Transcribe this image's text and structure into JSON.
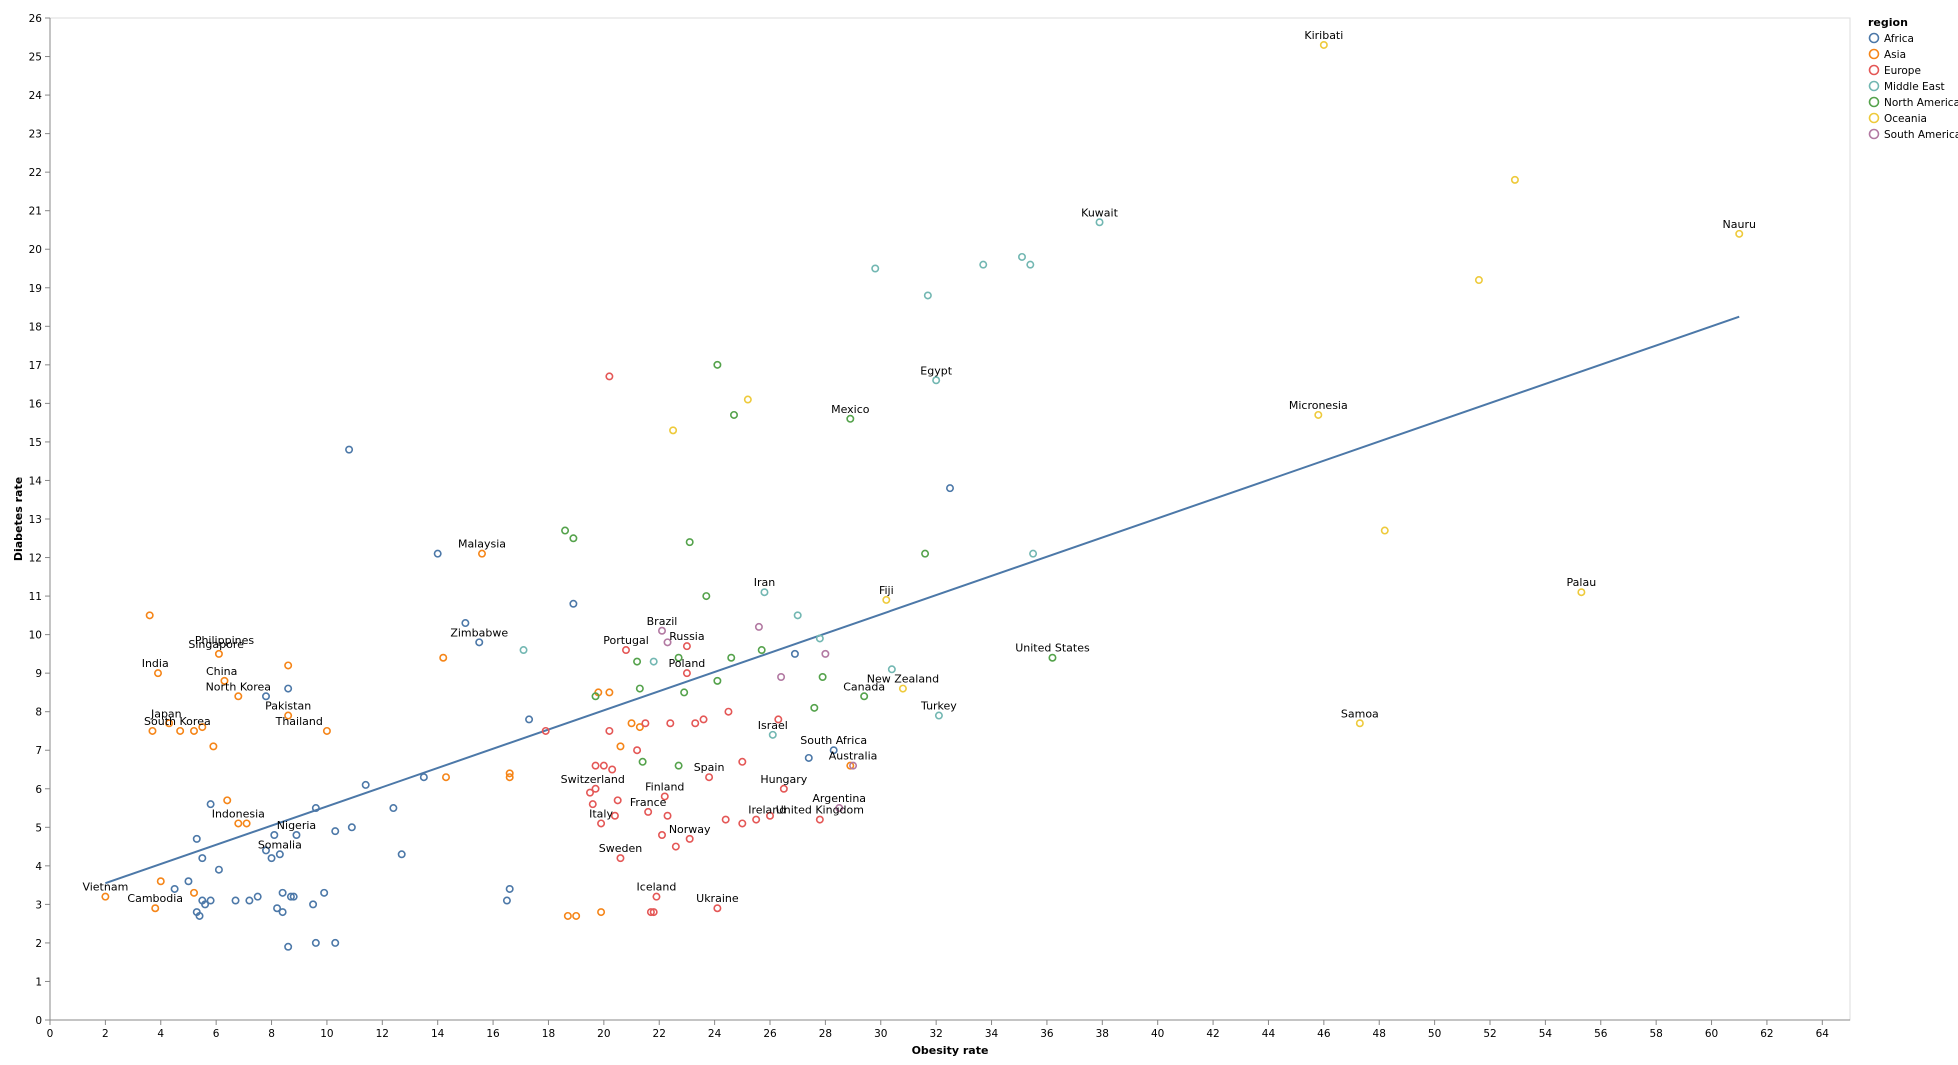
{
  "chart_data": {
    "type": "scatter",
    "xlabel": "Obesity rate",
    "ylabel": "Diabetes rate",
    "xlim": [
      0,
      65
    ],
    "ylim": [
      0,
      26
    ],
    "x_ticks": [
      0,
      2,
      4,
      6,
      8,
      10,
      12,
      14,
      16,
      18,
      20,
      22,
      24,
      26,
      28,
      30,
      32,
      34,
      36,
      38,
      40,
      42,
      44,
      46,
      48,
      50,
      52,
      54,
      56,
      58,
      60,
      62,
      64
    ],
    "y_ticks": [
      0,
      1,
      2,
      3,
      4,
      5,
      6,
      7,
      8,
      9,
      10,
      11,
      12,
      13,
      14,
      15,
      16,
      17,
      18,
      19,
      20,
      21,
      22,
      23,
      24,
      25,
      26
    ],
    "grid": false,
    "legend": {
      "title": "region",
      "position": "top-right",
      "entries": [
        {
          "name": "Africa",
          "color": "#4c78a8"
        },
        {
          "name": "Asia",
          "color": "#f58518"
        },
        {
          "name": "Europe",
          "color": "#e45756"
        },
        {
          "name": "Middle East",
          "color": "#72b7b2"
        },
        {
          "name": "North America",
          "color": "#54a24b"
        },
        {
          "name": "Oceania",
          "color": "#eeca3b"
        },
        {
          "name": "South America",
          "color": "#b279a2"
        }
      ]
    },
    "trend_line": {
      "x": [
        2.0,
        61.0
      ],
      "y": [
        3.55,
        18.25
      ],
      "color": "#4c78a8"
    },
    "series": [
      {
        "name": "Africa",
        "color": "#4c78a8",
        "points": [
          [
            10.8,
            14.8
          ],
          [
            14.0,
            12.1
          ],
          [
            32.5,
            13.8
          ],
          [
            18.9,
            10.8
          ],
          [
            15.0,
            10.3
          ],
          [
            15.5,
            9.8
          ],
          [
            8.6,
            8.6
          ],
          [
            17.3,
            7.8
          ],
          [
            7.8,
            8.4
          ],
          [
            27.4,
            6.8
          ],
          [
            28.3,
            7.0
          ],
          [
            26.9,
            9.5
          ],
          [
            11.4,
            6.1
          ],
          [
            13.5,
            6.3
          ],
          [
            12.4,
            5.5
          ],
          [
            9.6,
            5.5
          ],
          [
            5.8,
            5.6
          ],
          [
            10.3,
            4.9
          ],
          [
            10.9,
            5.0
          ],
          [
            8.9,
            4.8
          ],
          [
            8.1,
            4.8
          ],
          [
            5.3,
            4.7
          ],
          [
            5.5,
            4.2
          ],
          [
            6.1,
            3.9
          ],
          [
            7.8,
            4.4
          ],
          [
            8.0,
            4.2
          ],
          [
            8.3,
            4.3
          ],
          [
            12.7,
            4.3
          ],
          [
            5.0,
            3.6
          ],
          [
            4.5,
            3.4
          ],
          [
            5.5,
            3.1
          ],
          [
            5.6,
            3.0
          ],
          [
            5.8,
            3.1
          ],
          [
            6.7,
            3.1
          ],
          [
            7.2,
            3.1
          ],
          [
            7.5,
            3.2
          ],
          [
            8.4,
            3.3
          ],
          [
            8.7,
            3.2
          ],
          [
            8.8,
            3.2
          ],
          [
            9.9,
            3.3
          ],
          [
            9.5,
            3.0
          ],
          [
            8.2,
            2.9
          ],
          [
            8.4,
            2.8
          ],
          [
            5.3,
            2.8
          ],
          [
            5.4,
            2.7
          ],
          [
            16.6,
            3.4
          ],
          [
            16.5,
            3.1
          ],
          [
            9.6,
            2.0
          ],
          [
            10.3,
            2.0
          ],
          [
            8.6,
            1.9
          ]
        ]
      },
      {
        "name": "Asia",
        "color": "#f58518"
      },
      {
        "name": "Europe",
        "color": "#e45756"
      },
      {
        "name": "Middle East",
        "color": "#72b7b2"
      },
      {
        "name": "North America",
        "color": "#54a24b"
      },
      {
        "name": "Oceania",
        "color": "#eeca3b"
      },
      {
        "name": "South America",
        "color": "#b279a2"
      }
    ],
    "asia_points": [
      [
        3.6,
        10.5
      ],
      [
        3.9,
        9.0
      ],
      [
        6.1,
        9.5
      ],
      [
        8.6,
        9.2
      ],
      [
        15.6,
        12.1
      ],
      [
        14.2,
        9.4
      ],
      [
        6.3,
        8.8
      ],
      [
        6.8,
        8.4
      ],
      [
        8.6,
        7.9
      ],
      [
        10.0,
        7.5
      ],
      [
        3.7,
        7.5
      ],
      [
        4.3,
        7.7
      ],
      [
        4.7,
        7.5
      ],
      [
        5.2,
        7.5
      ],
      [
        5.5,
        7.6
      ],
      [
        5.9,
        7.1
      ],
      [
        6.4,
        5.7
      ],
      [
        6.8,
        5.1
      ],
      [
        7.1,
        5.1
      ],
      [
        4.0,
        3.6
      ],
      [
        5.2,
        3.3
      ],
      [
        2.0,
        3.2
      ],
      [
        3.8,
        2.9
      ],
      [
        16.6,
        6.4
      ],
      [
        16.6,
        6.3
      ],
      [
        14.3,
        6.3
      ],
      [
        20.2,
        8.5
      ],
      [
        19.8,
        8.5
      ],
      [
        21.0,
        7.7
      ],
      [
        21.3,
        7.6
      ],
      [
        20.6,
        7.1
      ],
      [
        18.7,
        2.7
      ],
      [
        19.0,
        2.7
      ],
      [
        19.9,
        2.8
      ],
      [
        28.9,
        6.6
      ]
    ],
    "europe_points": [
      [
        20.2,
        16.7
      ],
      [
        23.0,
        9.7
      ],
      [
        20.8,
        9.6
      ],
      [
        23.0,
        9.0
      ],
      [
        20.2,
        7.5
      ],
      [
        21.5,
        7.7
      ],
      [
        22.4,
        7.7
      ],
      [
        23.3,
        7.7
      ],
      [
        23.6,
        7.8
      ],
      [
        24.5,
        8.0
      ],
      [
        26.3,
        7.8
      ],
      [
        17.9,
        7.5
      ],
      [
        21.2,
        7.0
      ],
      [
        25.0,
        6.7
      ],
      [
        23.8,
        6.3
      ],
      [
        19.7,
        6.6
      ],
      [
        20.0,
        6.6
      ],
      [
        20.3,
        6.5
      ],
      [
        19.5,
        5.9
      ],
      [
        19.7,
        6.0
      ],
      [
        20.5,
        5.7
      ],
      [
        22.2,
        5.8
      ],
      [
        21.6,
        5.4
      ],
      [
        22.3,
        5.3
      ],
      [
        20.4,
        5.3
      ],
      [
        19.9,
        5.1
      ],
      [
        19.6,
        5.6
      ],
      [
        24.4,
        5.2
      ],
      [
        25.0,
        5.1
      ],
      [
        25.5,
        5.2
      ],
      [
        26.0,
        5.3
      ],
      [
        26.5,
        6.0
      ],
      [
        27.8,
        5.2
      ],
      [
        22.1,
        4.8
      ],
      [
        23.1,
        4.7
      ],
      [
        22.6,
        4.5
      ],
      [
        20.6,
        4.2
      ],
      [
        21.9,
        3.2
      ],
      [
        21.7,
        2.8
      ],
      [
        21.8,
        2.8
      ],
      [
        24.1,
        2.9
      ]
    ],
    "middleeast_points": [
      [
        29.8,
        19.5
      ],
      [
        31.7,
        18.8
      ],
      [
        33.7,
        19.6
      ],
      [
        35.1,
        19.8
      ],
      [
        35.4,
        19.6
      ],
      [
        37.9,
        20.7
      ],
      [
        32.0,
        16.6
      ],
      [
        25.8,
        11.1
      ],
      [
        35.5,
        12.1
      ],
      [
        27.0,
        10.5
      ],
      [
        27.8,
        9.9
      ],
      [
        30.4,
        9.1
      ],
      [
        21.8,
        9.3
      ],
      [
        17.1,
        9.6
      ],
      [
        32.1,
        7.9
      ],
      [
        26.1,
        7.4
      ]
    ],
    "namerica_points": [
      [
        24.1,
        17.0
      ],
      [
        24.7,
        15.7
      ],
      [
        28.9,
        15.6
      ],
      [
        18.6,
        12.7
      ],
      [
        18.9,
        12.5
      ],
      [
        23.1,
        12.4
      ],
      [
        31.6,
        12.1
      ],
      [
        23.7,
        11.0
      ],
      [
        25.7,
        9.6
      ],
      [
        24.6,
        9.4
      ],
      [
        22.7,
        9.4
      ],
      [
        21.2,
        9.3
      ],
      [
        24.1,
        8.8
      ],
      [
        27.9,
        8.9
      ],
      [
        22.9,
        8.5
      ],
      [
        21.3,
        8.6
      ],
      [
        19.7,
        8.4
      ],
      [
        29.4,
        8.4
      ],
      [
        27.6,
        8.1
      ],
      [
        36.2,
        9.4
      ],
      [
        21.4,
        6.7
      ],
      [
        22.7,
        6.6
      ]
    ],
    "oceania_points": [
      [
        46.0,
        25.3
      ],
      [
        52.9,
        21.8
      ],
      [
        51.6,
        19.2
      ],
      [
        61.0,
        20.4
      ],
      [
        25.2,
        16.1
      ],
      [
        22.5,
        15.3
      ],
      [
        45.8,
        15.7
      ],
      [
        48.2,
        12.7
      ],
      [
        30.2,
        10.9
      ],
      [
        55.3,
        11.1
      ],
      [
        30.8,
        8.6
      ],
      [
        47.3,
        7.7
      ]
    ],
    "samerica_points": [
      [
        22.1,
        10.1
      ],
      [
        25.6,
        10.2
      ],
      [
        22.3,
        9.8
      ],
      [
        28.0,
        9.5
      ],
      [
        26.4,
        8.9
      ],
      [
        29.0,
        6.6
      ],
      [
        28.5,
        5.5
      ]
    ],
    "labels": [
      {
        "text": "Kiribati",
        "x": 46.0,
        "y": 25.3
      },
      {
        "text": "Kuwait",
        "x": 37.9,
        "y": 20.7
      },
      {
        "text": "Nauru",
        "x": 61.0,
        "y": 20.4
      },
      {
        "text": "Egypt",
        "x": 32.0,
        "y": 16.6
      },
      {
        "text": "Mexico",
        "x": 28.9,
        "y": 15.6
      },
      {
        "text": "Micronesia",
        "x": 45.8,
        "y": 15.7
      },
      {
        "text": "Malaysia",
        "x": 15.6,
        "y": 12.1
      },
      {
        "text": "Iran",
        "x": 25.8,
        "y": 11.1
      },
      {
        "text": "Fiji",
        "x": 30.2,
        "y": 10.9
      },
      {
        "text": "Palau",
        "x": 55.3,
        "y": 11.1
      },
      {
        "text": "Brazil",
        "x": 22.1,
        "y": 10.1
      },
      {
        "text": "Zimbabwe",
        "x": 15.5,
        "y": 9.8
      },
      {
        "text": "Portugal",
        "x": 20.8,
        "y": 9.6
      },
      {
        "text": "Russia",
        "x": 23.0,
        "y": 9.7
      },
      {
        "text": "Philippines",
        "x": 6.3,
        "y": 9.6
      },
      {
        "text": "Singapore",
        "x": 6.0,
        "y": 9.5
      },
      {
        "text": "United States",
        "x": 36.2,
        "y": 9.4
      },
      {
        "text": "India",
        "x": 3.8,
        "y": 9.0
      },
      {
        "text": "China",
        "x": 6.2,
        "y": 8.8
      },
      {
        "text": "Poland",
        "x": 23.0,
        "y": 9.0
      },
      {
        "text": "New Zealand",
        "x": 30.8,
        "y": 8.6
      },
      {
        "text": "Canada",
        "x": 29.4,
        "y": 8.4
      },
      {
        "text": "North Korea",
        "x": 6.8,
        "y": 8.4
      },
      {
        "text": "Pakistan",
        "x": 8.6,
        "y": 7.9
      },
      {
        "text": "Turkey",
        "x": 32.1,
        "y": 7.9
      },
      {
        "text": "Japan",
        "x": 4.2,
        "y": 7.7
      },
      {
        "text": "Samoa",
        "x": 47.3,
        "y": 7.7
      },
      {
        "text": "South Korea",
        "x": 4.6,
        "y": 7.5
      },
      {
        "text": "Thailand",
        "x": 9.0,
        "y": 7.5
      },
      {
        "text": "Israel",
        "x": 26.1,
        "y": 7.4
      },
      {
        "text": "South Africa",
        "x": 28.3,
        "y": 7.0
      },
      {
        "text": "Australia",
        "x": 29.0,
        "y": 6.6
      },
      {
        "text": "Spain",
        "x": 23.8,
        "y": 6.3
      },
      {
        "text": "Hungary",
        "x": 26.5,
        "y": 6.0
      },
      {
        "text": "Switzerland",
        "x": 19.6,
        "y": 6.0
      },
      {
        "text": "Finland",
        "x": 22.2,
        "y": 5.8
      },
      {
        "text": "Argentina",
        "x": 28.5,
        "y": 5.5
      },
      {
        "text": "France",
        "x": 21.6,
        "y": 5.4
      },
      {
        "text": "Ireland",
        "x": 25.9,
        "y": 5.2
      },
      {
        "text": "United Kingdom",
        "x": 27.8,
        "y": 5.2
      },
      {
        "text": "Indonesia",
        "x": 6.8,
        "y": 5.1
      },
      {
        "text": "Italy",
        "x": 19.9,
        "y": 5.1
      },
      {
        "text": "Nigeria",
        "x": 8.9,
        "y": 4.8
      },
      {
        "text": "Norway",
        "x": 23.1,
        "y": 4.7
      },
      {
        "text": "Somalia",
        "x": 8.3,
        "y": 4.3
      },
      {
        "text": "Sweden",
        "x": 20.6,
        "y": 4.2
      },
      {
        "text": "Vietnam",
        "x": 2.0,
        "y": 3.2
      },
      {
        "text": "Iceland",
        "x": 21.9,
        "y": 3.2
      },
      {
        "text": "Cambodia",
        "x": 3.8,
        "y": 2.9
      },
      {
        "text": "Ukraine",
        "x": 24.1,
        "y": 2.9
      }
    ]
  }
}
